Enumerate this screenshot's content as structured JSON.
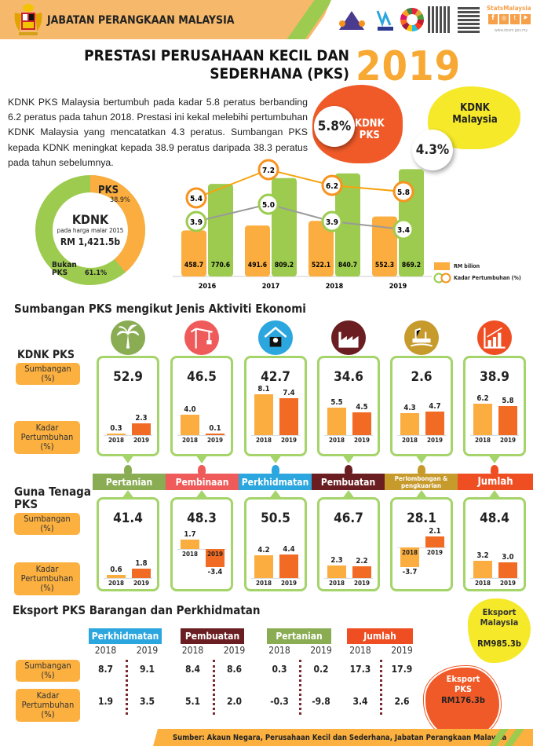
{
  "header": {
    "org": "JABATAN PERANGKAAN MALAYSIA",
    "stats_brand": "StatsMalaysia",
    "website": "www.dosm.gov.my",
    "brand_accent": "#f6b96c"
  },
  "title": {
    "line1": "PRESTASI PERUSAHAAN KECIL DAN",
    "line2": "SEDERHANA (PKS)",
    "year": "2019"
  },
  "intro": "KDNK PKS Malaysia bertumbuh pada kadar 5.8 peratus berbanding 6.2 peratus pada tahun 2018. Prestasi ini kekal melebihi pertumbuhan KDNK Malaysia yang mencatatkan 4.3 peratus. Sumbangan PKS kepada KDNK meningkat kepada 38.9 peratus daripada 38.3 peratus pada tahun sebelumnya.",
  "highlights": {
    "pks_value": "5.8%",
    "pks_label1": "KDNK",
    "pks_label2": "PKS",
    "my_label1": "KDNK",
    "my_label2": "Malaysia",
    "my_value": "4.3%"
  },
  "donut": {
    "title": "KDNK",
    "subtitle": "pada harga malar 2015",
    "total": "RM 1,421.5b",
    "pks_label": "PKS",
    "pks_pct": "38.9%",
    "non_label1": "Bukan",
    "non_label2": "PKS",
    "non_pct": "61.1%",
    "pks_share": 38.9
  },
  "chart_data": {
    "type": "bar",
    "categories": [
      "2016",
      "2017",
      "2018",
      "2019"
    ],
    "series": [
      {
        "name": "RM bilion",
        "values": [
          458.7,
          491.6,
          522.1,
          552.3
        ],
        "color": "#fbad3f"
      },
      {
        "name": "RM bilion",
        "values": [
          770.6,
          809.2,
          840.7,
          869.2
        ],
        "color": "#9ccb4f"
      }
    ],
    "lines": [
      {
        "name": "Kadar Pertumbuhan (%)",
        "values": [
          5.4,
          7.2,
          6.2,
          5.8
        ],
        "color": "#f7a30f"
      },
      {
        "name": "Kadar Pertumbuhan (%)",
        "values": [
          3.9,
          5.0,
          3.9,
          3.4
        ],
        "color": "#9a9a9a"
      }
    ],
    "legend": [
      "RM bilion",
      "Kadar Pertumbuhan (%)"
    ],
    "legend_placement": "bottom-right"
  },
  "sectors": {
    "heading": "Sumbangan PKS mengikut Jenis Aktiviti Ekonomi",
    "kdnk_label": "KDNK PKS",
    "guna_label1": "Guna Tenaga",
    "guna_label2": "PKS",
    "sumbangan": "Sumbangan",
    "pct": "(%)",
    "kadar1": "Kadar",
    "kadar2": "Pertumbuhan",
    "years": [
      "2018",
      "2019"
    ],
    "items": [
      {
        "name": "Pertanian",
        "icon": "palm-tree-icon",
        "color": "#8aac53",
        "kdnk_share": "52.9",
        "kdnk_growth": [
          0.3,
          2.3
        ],
        "emp_share": "41.4",
        "emp_growth": [
          0.6,
          1.8
        ]
      },
      {
        "name": "Pembinaan",
        "icon": "crane-icon",
        "color": "#ef5a5a",
        "kdnk_share": "46.5",
        "kdnk_growth": [
          4.0,
          0.1
        ],
        "emp_share": "48.3",
        "emp_growth": [
          1.7,
          -3.4
        ]
      },
      {
        "name": "Perkhidmatan",
        "icon": "service-icon",
        "color": "#2ba6de",
        "kdnk_share": "42.7",
        "kdnk_growth": [
          8.1,
          7.4
        ],
        "emp_share": "50.5",
        "emp_growth": [
          4.2,
          4.4
        ]
      },
      {
        "name": "Pembuatan",
        "icon": "factory-icon",
        "color": "#6b1e22",
        "kdnk_share": "34.6",
        "kdnk_growth": [
          5.5,
          4.5
        ],
        "emp_share": "46.7",
        "emp_growth": [
          2.3,
          2.2
        ]
      },
      {
        "name": "Perlombongan & pengkuarian",
        "icon": "oil-rig-icon",
        "color": "#c79a2c",
        "kdnk_share": "2.6",
        "kdnk_growth": [
          4.3,
          4.7
        ],
        "emp_share": "28.1",
        "emp_growth": [
          -3.7,
          2.1
        ]
      },
      {
        "name": "Jumlah",
        "icon": "bar-chart-icon",
        "color": "#ef4e23",
        "kdnk_share": "38.9",
        "kdnk_growth": [
          6.2,
          5.8
        ],
        "emp_share": "48.4",
        "emp_growth": [
          3.2,
          3.0
        ]
      }
    ]
  },
  "exports": {
    "heading": "Eksport PKS Barangan dan Perkhidmatan",
    "groups": [
      {
        "name": "Perkhidmatan",
        "color": "#2ba6de",
        "share": [
          "8.7",
          "9.1"
        ],
        "growth": [
          "1.9",
          "3.5"
        ]
      },
      {
        "name": "Pembuatan",
        "color": "#6b1e22",
        "share": [
          "8.4",
          "8.6"
        ],
        "growth": [
          "5.1",
          "2.0"
        ]
      },
      {
        "name": "Pertanian",
        "color": "#8aac53",
        "share": [
          "0.3",
          "0.2"
        ],
        "growth": [
          "-0.3",
          "-9.8"
        ]
      },
      {
        "name": "Jumlah",
        "color": "#ef4e23",
        "share": [
          "17.3",
          "17.9"
        ],
        "growth": [
          "3.4",
          "2.6"
        ]
      }
    ],
    "my_label1": "Eksport",
    "my_label2": "Malaysia",
    "my_value": "RM985.3b",
    "pks_label1": "Eksport",
    "pks_label2": "PKS",
    "pks_value": "RM176.3b"
  },
  "footer": "Sumber: Akaun Negara, Perusahaan Kecil dan Sederhana, Jabatan Perangkaan Malaysia"
}
